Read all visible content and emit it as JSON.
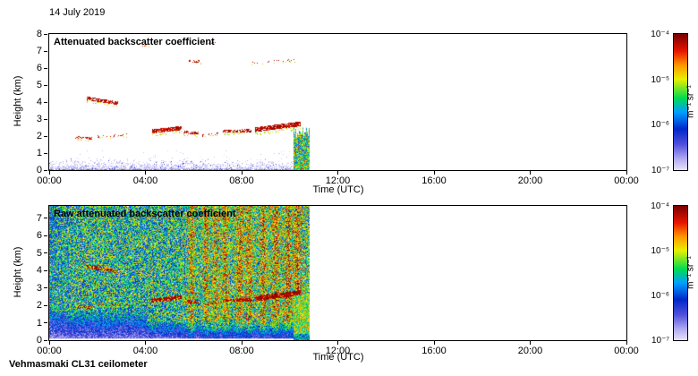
{
  "figure": {
    "date_label": "14 July 2019",
    "instrument_label": "Vehmasmaki CL31 ceilometer"
  },
  "colorbar": {
    "tick_labels": [
      "10⁻⁴",
      "10⁻⁵",
      "10⁻⁶",
      "10⁻⁷"
    ],
    "unit_label": "m⁻¹ sr⁻¹",
    "scale": "log",
    "range_top_to_bottom_exponents": [
      -4,
      -7
    ]
  },
  "colormap_stops": [
    {
      "t": 0.0,
      "color": "#ffffff"
    },
    {
      "t": 0.04,
      "color": "#e6e2fa"
    },
    {
      "t": 0.12,
      "color": "#b0aaf0"
    },
    {
      "t": 0.22,
      "color": "#5050dc"
    },
    {
      "t": 0.33,
      "color": "#0028c8"
    },
    {
      "t": 0.45,
      "color": "#00a0ff"
    },
    {
      "t": 0.55,
      "color": "#00dc50"
    },
    {
      "t": 0.68,
      "color": "#e8f000"
    },
    {
      "t": 0.78,
      "color": "#ff9600"
    },
    {
      "t": 0.88,
      "color": "#e61400"
    },
    {
      "t": 1.0,
      "color": "#780000"
    }
  ],
  "chart_data": [
    {
      "type": "heatmap",
      "title": "Attenuated backscatter coefficient",
      "xlabel": "Time (UTC)",
      "ylabel": "Height (km)",
      "x_range_hours": [
        0,
        24
      ],
      "y_range_km": [
        0,
        8
      ],
      "x_tick_labels": [
        "00:00",
        "04:00",
        "08:00",
        "12:00",
        "16:00",
        "20:00",
        "00:00"
      ],
      "y_ticks_km": [
        0,
        1,
        2,
        3,
        4,
        5,
        6,
        7,
        8
      ],
      "value_range_m1sr1": [
        "1e-7",
        "1e-4"
      ],
      "data_end_hour": 10.8,
      "seed": 12345,
      "surface_layer": {
        "top_km": 0.45,
        "description": "shallow light blue-violet aerosol layer at the surface from 00:00 until 10:48"
      },
      "cloud_segments": [
        {
          "t0": 1.05,
          "t1": 1.75,
          "h0": 1.95,
          "h1": 1.9,
          "thick": 0.14,
          "density": 0.55
        },
        {
          "t0": 1.55,
          "t1": 2.85,
          "h0": 4.25,
          "h1": 3.95,
          "thick": 0.2,
          "density": 0.7
        },
        {
          "t0": 2.0,
          "t1": 3.2,
          "h0": 2.0,
          "h1": 2.1,
          "thick": 0.12,
          "density": 0.35
        },
        {
          "t0": 4.25,
          "t1": 5.5,
          "h0": 2.3,
          "h1": 2.5,
          "thick": 0.24,
          "density": 0.85
        },
        {
          "t0": 5.55,
          "t1": 6.2,
          "h0": 2.25,
          "h1": 2.2,
          "thick": 0.16,
          "density": 0.6
        },
        {
          "t0": 6.35,
          "t1": 7.1,
          "h0": 2.05,
          "h1": 2.2,
          "thick": 0.12,
          "density": 0.3
        },
        {
          "t0": 7.2,
          "t1": 8.4,
          "h0": 2.3,
          "h1": 2.35,
          "thick": 0.18,
          "density": 0.65
        },
        {
          "t0": 8.55,
          "t1": 10.45,
          "h0": 2.4,
          "h1": 2.75,
          "thick": 0.28,
          "density": 0.85
        },
        {
          "t0": 3.85,
          "t1": 4.15,
          "h0": 7.35,
          "h1": 7.45,
          "thick": 0.14,
          "density": 0.3
        },
        {
          "t0": 5.8,
          "t1": 6.3,
          "h0": 6.45,
          "h1": 6.4,
          "thick": 0.14,
          "density": 0.35
        },
        {
          "t0": 6.6,
          "t1": 6.95,
          "h0": 7.5,
          "h1": 7.5,
          "thick": 0.12,
          "density": 0.22
        },
        {
          "t0": 8.4,
          "t1": 10.3,
          "h0": 6.35,
          "h1": 6.5,
          "thick": 0.12,
          "density": 0.12
        }
      ],
      "precip_event": {
        "t0": 10.15,
        "t1": 10.8,
        "top_km": 2.6,
        "description": "green/yellow precipitation streak reaching the ground just before data ends"
      }
    },
    {
      "type": "heatmap",
      "title": "Raw attenuated backscatter coefficient",
      "xlabel": "Time (UTC)",
      "ylabel": "Height (km)",
      "x_range_hours": [
        0,
        24
      ],
      "y_range_km": [
        0,
        7.7
      ],
      "x_tick_labels": [
        "00:00",
        "04:00",
        "08:00",
        "12:00",
        "16:00",
        "20:00",
        "00:00"
      ],
      "y_ticks_km": [
        0,
        1,
        2,
        3,
        4,
        5,
        6,
        7
      ],
      "value_range_m1sr1": [
        "1e-7",
        "1e-4"
      ],
      "data_end_hour": 10.8,
      "seed": 98765,
      "noise": {
        "description": "dense rainbow instrument noise over whole profile until 10:48, redder vertical streaks after sunrise",
        "red_streak_hours": [
          5.9,
          6.5,
          6.9,
          7.3,
          7.9,
          8.3,
          8.9,
          9.4,
          9.9,
          10.3
        ],
        "daytime_ramp_start_hour": 4.2
      },
      "boundary_layer": {
        "blue_top_km_night": 1.9,
        "blue_top_km_day": 1.25,
        "white_band_top_km": 0.12
      }
    }
  ]
}
